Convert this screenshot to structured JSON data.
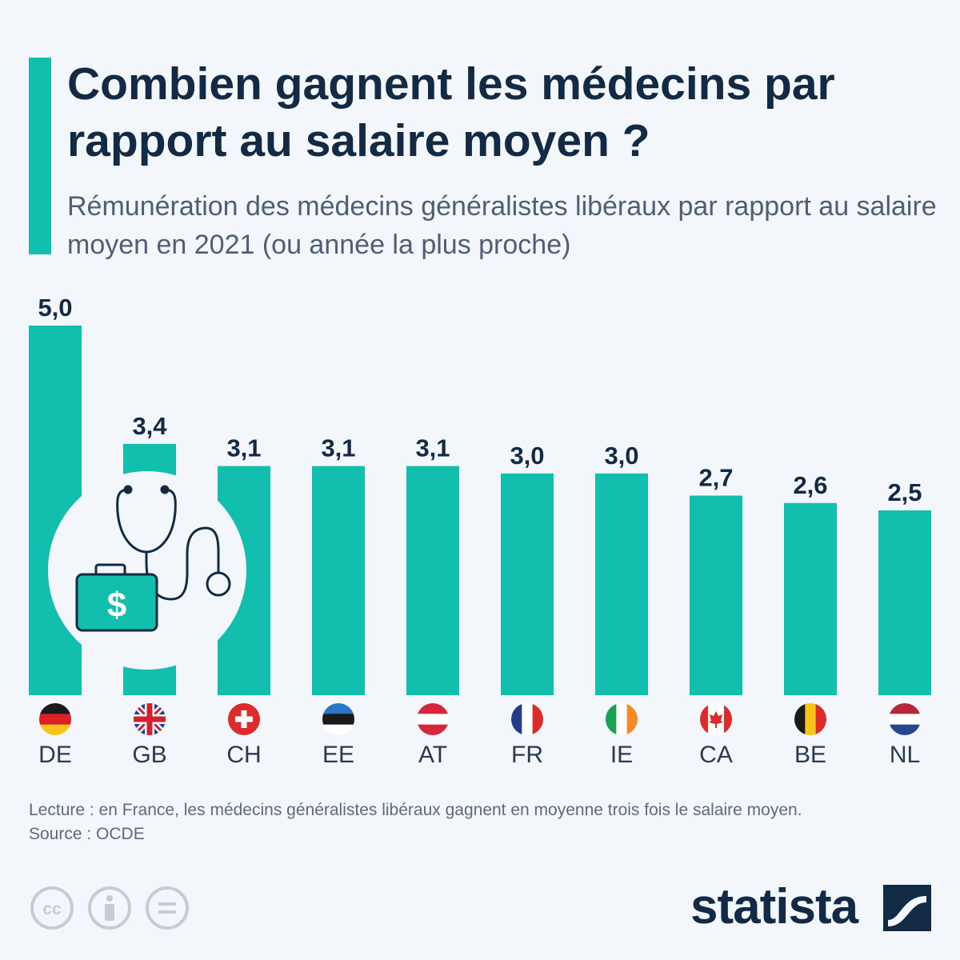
{
  "header": {
    "title": "Combien gagnent les médecins par rapport au salaire moyen ?",
    "subtitle": "Rémunération des médecins généralistes libéraux par rapport au salaire moyen en 2021 (ou année la plus proche)"
  },
  "chart_data": {
    "type": "bar",
    "categories": [
      "DE",
      "GB",
      "CH",
      "EE",
      "AT",
      "FR",
      "IE",
      "CA",
      "BE",
      "NL"
    ],
    "values": [
      5.0,
      3.4,
      3.1,
      3.1,
      3.1,
      3.0,
      3.0,
      2.7,
      2.6,
      2.5
    ],
    "value_labels": [
      "5,0",
      "3,4",
      "3,1",
      "3,1",
      "3,1",
      "3,0",
      "3,0",
      "2,7",
      "2,6",
      "2,5"
    ],
    "title": "",
    "xlabel": "",
    "ylabel": "",
    "ylim": [
      0,
      5.0
    ],
    "grid": false,
    "bar_color": "#12bfae"
  },
  "illustration": {
    "icons": [
      "stethoscope-icon",
      "medical-bag-icon",
      "dollar-icon"
    ],
    "dollar_symbol": "$"
  },
  "footer": {
    "note": "Lecture : en France, les médecins généralistes libéraux gagnent en moyenne trois fois le salaire moyen.",
    "source": "Source : OCDE",
    "brand": "statista",
    "license_icons": [
      "cc-icon",
      "attribution-icon",
      "no-derivatives-icon"
    ]
  },
  "colors": {
    "background": "#f3f7fb",
    "accent": "#12bfae",
    "title": "#132a45",
    "text": "#4e5f73"
  }
}
